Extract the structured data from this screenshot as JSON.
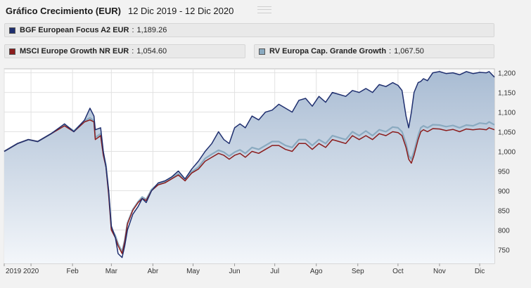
{
  "header": {
    "title": "Gráfico Crecimiento (EUR)",
    "date_range": "12 Dic 2019 - 12 Dic 2020"
  },
  "legend": [
    {
      "name": "BGF European Focus A2 EUR",
      "value": "1,189.26",
      "color": "#1f2f6f"
    },
    {
      "name": "MSCI Europe Growth NR EUR",
      "value": "1,054.60",
      "color": "#8b1c1c"
    },
    {
      "name": "RV Europa Cap. Grande Growth",
      "value": "1,067.50",
      "color": "#8aaac0"
    }
  ],
  "chart_data": {
    "type": "line",
    "y_ticks": [
      "1,200",
      "1,150",
      "1,100",
      "1,050",
      "1,000",
      "950",
      "900",
      "850",
      "800",
      "750"
    ],
    "ylim": [
      715,
      1210
    ],
    "x_labels": [
      "2019",
      "2020",
      "Feb",
      "Mar",
      "Abr",
      "May",
      "Jun",
      "Jul",
      "Ago",
      "Sep",
      "Oct",
      "Nov",
      "Dic"
    ],
    "x_label_days": [
      0,
      20,
      51,
      80,
      111,
      141,
      172,
      202,
      233,
      264,
      294,
      325,
      355
    ],
    "x_range_days": [
      0,
      366
    ],
    "series": [
      {
        "name": "BGF European Focus A2 EUR",
        "color": "#1f2f6f",
        "x": [
          0,
          10,
          18,
          25,
          35,
          45,
          52,
          60,
          64,
          67,
          68,
          72,
          74,
          76,
          78,
          80,
          83,
          85,
          88,
          90,
          92,
          96,
          100,
          103,
          106,
          110,
          115,
          120,
          125,
          130,
          135,
          140,
          145,
          150,
          155,
          160,
          164,
          168,
          172,
          176,
          180,
          185,
          190,
          195,
          200,
          205,
          210,
          215,
          220,
          225,
          230,
          235,
          240,
          245,
          250,
          255,
          260,
          265,
          270,
          275,
          280,
          285,
          290,
          294,
          297,
          300,
          302,
          304,
          306,
          309,
          311,
          313,
          316,
          320,
          325,
          330,
          335,
          340,
          345,
          350,
          355,
          360,
          362,
          366
        ],
        "y": [
          1000,
          1020,
          1030,
          1025,
          1045,
          1070,
          1050,
          1080,
          1110,
          1090,
          1055,
          1060,
          1000,
          960,
          900,
          810,
          780,
          740,
          730,
          760,
          800,
          840,
          860,
          880,
          870,
          900,
          920,
          925,
          935,
          950,
          930,
          955,
          975,
          1000,
          1020,
          1050,
          1030,
          1020,
          1060,
          1070,
          1060,
          1090,
          1080,
          1100,
          1105,
          1120,
          1110,
          1100,
          1130,
          1135,
          1115,
          1140,
          1125,
          1150,
          1145,
          1140,
          1155,
          1150,
          1160,
          1150,
          1170,
          1165,
          1175,
          1168,
          1155,
          1090,
          1060,
          1100,
          1150,
          1175,
          1178,
          1185,
          1180,
          1200,
          1203,
          1198,
          1200,
          1195,
          1203,
          1198,
          1201,
          1200,
          1203,
          1189
        ]
      },
      {
        "name": "MSCI Europe Growth NR EUR",
        "color": "#8b1c1c",
        "x": [
          0,
          10,
          18,
          25,
          35,
          45,
          52,
          60,
          64,
          67,
          68,
          72,
          74,
          76,
          78,
          80,
          83,
          85,
          88,
          90,
          92,
          96,
          100,
          103,
          106,
          110,
          115,
          120,
          125,
          130,
          135,
          140,
          145,
          150,
          155,
          160,
          164,
          168,
          172,
          176,
          180,
          185,
          190,
          195,
          200,
          205,
          210,
          215,
          220,
          225,
          230,
          235,
          240,
          245,
          250,
          255,
          260,
          265,
          270,
          275,
          280,
          285,
          290,
          294,
          297,
          300,
          302,
          304,
          306,
          309,
          311,
          313,
          316,
          320,
          325,
          330,
          335,
          340,
          345,
          350,
          355,
          360,
          362,
          366
        ],
        "y": [
          1000,
          1020,
          1030,
          1025,
          1045,
          1065,
          1050,
          1075,
          1080,
          1075,
          1030,
          1040,
          990,
          960,
          890,
          800,
          780,
          760,
          740,
          770,
          815,
          850,
          870,
          880,
          875,
          900,
          915,
          920,
          930,
          940,
          925,
          945,
          955,
          975,
          985,
          995,
          990,
          980,
          990,
          995,
          985,
          1000,
          995,
          1005,
          1015,
          1015,
          1005,
          1000,
          1020,
          1020,
          1005,
          1020,
          1010,
          1030,
          1025,
          1020,
          1040,
          1030,
          1040,
          1030,
          1045,
          1040,
          1050,
          1048,
          1040,
          1010,
          980,
          970,
          990,
          1030,
          1050,
          1055,
          1050,
          1058,
          1057,
          1053,
          1056,
          1050,
          1057,
          1055,
          1057,
          1055,
          1060,
          1055
        ]
      },
      {
        "name": "RV Europa Cap. Grande Growth",
        "color": "#8aaac0",
        "x": [
          0,
          10,
          18,
          25,
          35,
          45,
          52,
          60,
          64,
          67,
          68,
          72,
          74,
          76,
          78,
          80,
          83,
          85,
          88,
          90,
          92,
          96,
          100,
          103,
          106,
          110,
          115,
          120,
          125,
          130,
          135,
          140,
          145,
          150,
          155,
          160,
          164,
          168,
          172,
          176,
          180,
          185,
          190,
          195,
          200,
          205,
          210,
          215,
          220,
          225,
          230,
          235,
          240,
          245,
          250,
          255,
          260,
          265,
          270,
          275,
          280,
          285,
          290,
          294,
          297,
          300,
          302,
          304,
          306,
          309,
          311,
          313,
          316,
          320,
          325,
          330,
          335,
          340,
          345,
          350,
          355,
          360,
          362,
          366
        ],
        "y": [
          1000,
          1020,
          1030,
          1025,
          1045,
          1068,
          1052,
          1078,
          1085,
          1078,
          1035,
          1045,
          995,
          965,
          895,
          805,
          785,
          765,
          745,
          775,
          818,
          852,
          872,
          884,
          878,
          903,
          918,
          923,
          933,
          943,
          928,
          948,
          960,
          982,
          993,
          1003,
          998,
          988,
          998,
          1004,
          995,
          1010,
          1005,
          1015,
          1025,
          1025,
          1015,
          1010,
          1030,
          1030,
          1015,
          1030,
          1020,
          1040,
          1035,
          1030,
          1050,
          1040,
          1052,
          1040,
          1055,
          1050,
          1062,
          1060,
          1050,
          1020,
          990,
          980,
          1000,
          1040,
          1060,
          1065,
          1060,
          1068,
          1067,
          1063,
          1066,
          1060,
          1067,
          1065,
          1072,
          1070,
          1075,
          1067.5
        ]
      }
    ],
    "area_fill_series": "BGF European Focus A2 EUR"
  }
}
